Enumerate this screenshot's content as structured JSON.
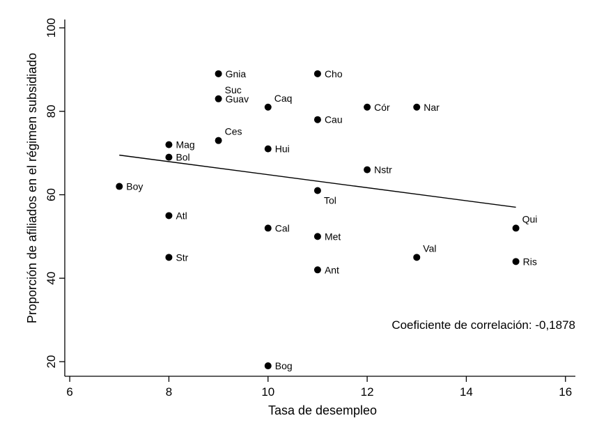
{
  "chart_data": {
    "type": "scatter",
    "title": "",
    "xlabel": "Tasa de desempleo",
    "ylabel": "Proporción de afiliados en el régimen subsidiado",
    "xlim": [
      5.9,
      16.2
    ],
    "ylim": [
      16.5,
      102
    ],
    "xticks": [
      6,
      8,
      10,
      12,
      14,
      16
    ],
    "yticks": [
      20,
      40,
      60,
      80,
      100
    ],
    "grid": false,
    "legend": "none",
    "points": [
      {
        "label": "Gnia",
        "x": 9,
        "y": 89,
        "label_pos": "right"
      },
      {
        "label": "Cho",
        "x": 11,
        "y": 89,
        "label_pos": "right"
      },
      {
        "label": "Suc",
        "x": 9,
        "y": 83,
        "label_pos": "above-right"
      },
      {
        "label": "Guav",
        "x": 9,
        "y": 83,
        "label_pos": "right"
      },
      {
        "label": "Caq",
        "x": 10,
        "y": 81,
        "label_pos": "above-right"
      },
      {
        "label": "Cór",
        "x": 12,
        "y": 81,
        "label_pos": "right"
      },
      {
        "label": "Nar",
        "x": 13,
        "y": 81,
        "label_pos": "right"
      },
      {
        "label": "Cau",
        "x": 11,
        "y": 78,
        "label_pos": "right"
      },
      {
        "label": "Ces",
        "x": 9,
        "y": 73,
        "label_pos": "above-right"
      },
      {
        "label": "Mag",
        "x": 8,
        "y": 72,
        "label_pos": "right"
      },
      {
        "label": "Hui",
        "x": 10,
        "y": 71,
        "label_pos": "right"
      },
      {
        "label": "Bol",
        "x": 8,
        "y": 69,
        "label_pos": "right"
      },
      {
        "label": "Nstr",
        "x": 12,
        "y": 66,
        "label_pos": "right"
      },
      {
        "label": "Boy",
        "x": 7,
        "y": 62,
        "label_pos": "right"
      },
      {
        "label": "Tol",
        "x": 11,
        "y": 61,
        "label_pos": "below-right"
      },
      {
        "label": "Atl",
        "x": 8,
        "y": 55,
        "label_pos": "right"
      },
      {
        "label": "Cal",
        "x": 10,
        "y": 52,
        "label_pos": "right"
      },
      {
        "label": "Qui",
        "x": 15,
        "y": 52,
        "label_pos": "above-right"
      },
      {
        "label": "Met",
        "x": 11,
        "y": 50,
        "label_pos": "right"
      },
      {
        "label": "Str",
        "x": 8,
        "y": 45,
        "label_pos": "right"
      },
      {
        "label": "Val",
        "x": 13,
        "y": 45,
        "label_pos": "above-right"
      },
      {
        "label": "Ris",
        "x": 15,
        "y": 44,
        "label_pos": "right"
      },
      {
        "label": "Ant",
        "x": 11,
        "y": 42,
        "label_pos": "right"
      },
      {
        "label": "Bog",
        "x": 10,
        "y": 19,
        "label_pos": "right"
      }
    ],
    "fit_line": {
      "x": [
        7,
        15
      ],
      "y": [
        69.5,
        57
      ]
    },
    "annotation": "Coeficiente de correlación: -0,1878",
    "marker_color": "#000000",
    "line_color": "#000000"
  }
}
